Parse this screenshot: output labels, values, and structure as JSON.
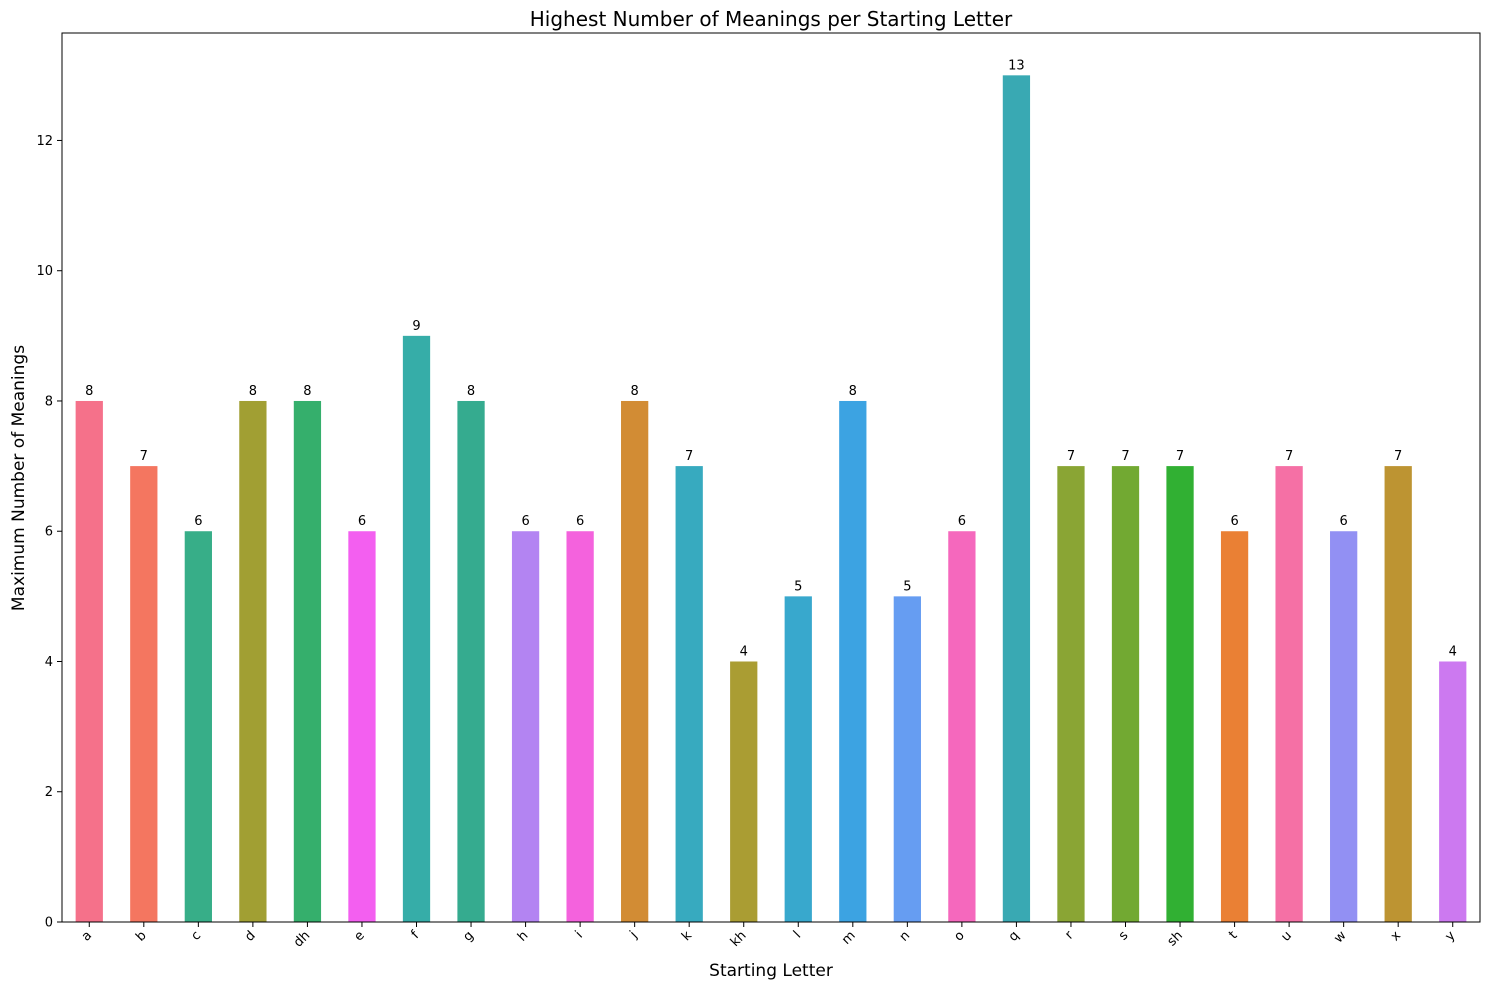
{
  "chart_data": {
    "type": "bar",
    "title": "Highest Number of Meanings per Starting Letter",
    "xlabel": "Starting Letter",
    "ylabel": "Maximum Number of Meanings",
    "ylim": [
      0,
      13.65
    ],
    "yticks": [
      0,
      2,
      4,
      6,
      8,
      10,
      12
    ],
    "grid": false,
    "categories": [
      "a",
      "b",
      "c",
      "d",
      "dh",
      "e",
      "f",
      "g",
      "h",
      "i",
      "j",
      "k",
      "kh",
      "l",
      "m",
      "n",
      "o",
      "q",
      "r",
      "s",
      "sh",
      "t",
      "u",
      "w",
      "x",
      "y"
    ],
    "values": [
      8,
      7,
      6,
      8,
      8,
      6,
      9,
      8,
      6,
      6,
      8,
      7,
      4,
      5,
      8,
      5,
      6,
      13,
      7,
      7,
      7,
      6,
      7,
      6,
      7,
      4
    ],
    "colors": [
      "#f5718a",
      "#f47660",
      "#37ae88",
      "#a19f33",
      "#35af6c",
      "#f35ff0",
      "#36ada8",
      "#35ab8f",
      "#b384f2",
      "#f462dd",
      "#d28c34",
      "#37aabf",
      "#aa9d33",
      "#38a8cd",
      "#3ca3e2",
      "#669df2",
      "#f568bd",
      "#39a9b3",
      "#8aa534",
      "#72a932",
      "#31b033",
      "#ea8034",
      "#f570a5",
      "#9290f3",
      "#bd9432",
      "#cc79f0"
    ]
  }
}
